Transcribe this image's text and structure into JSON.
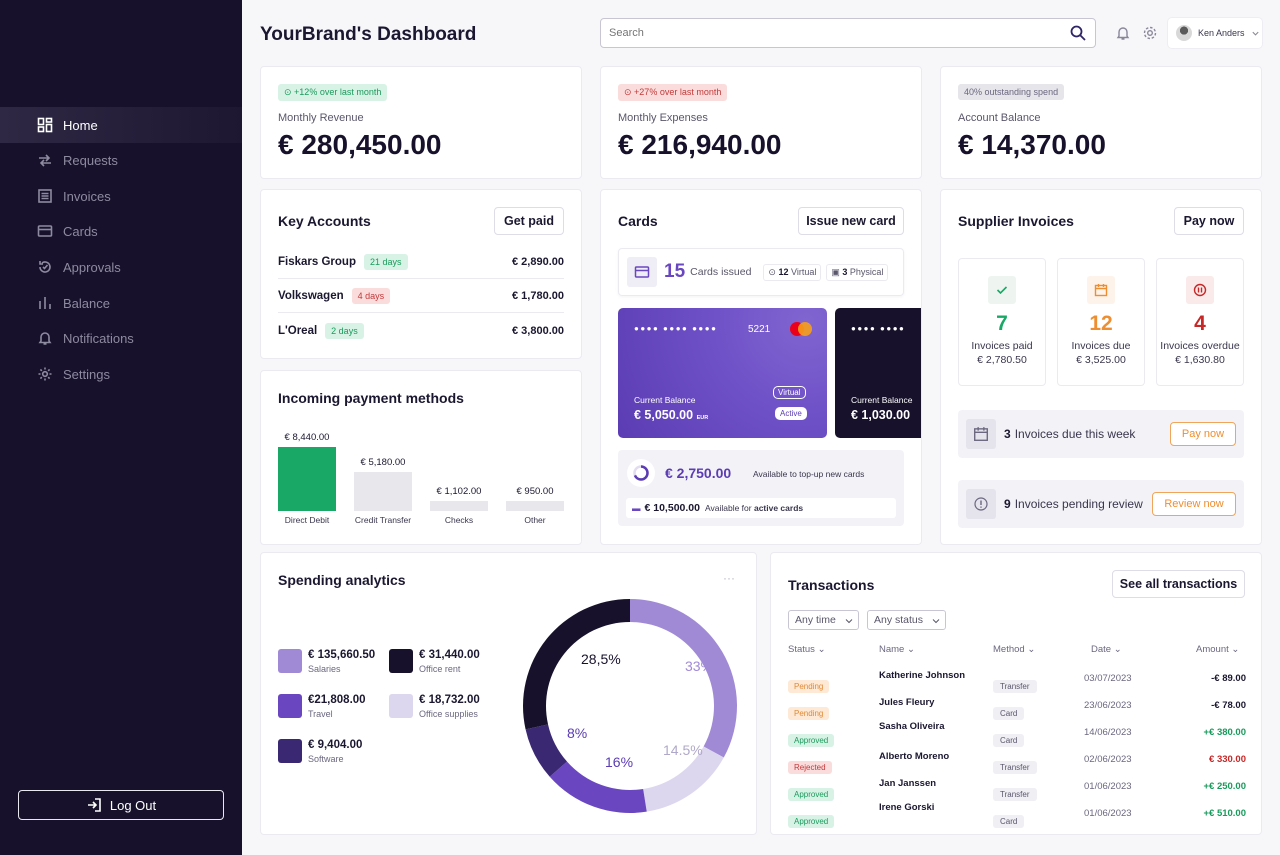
{
  "sidebar": {
    "items": [
      {
        "label": "Home",
        "icon": "grid-icon"
      },
      {
        "label": "Requests",
        "icon": "arrows-icon"
      },
      {
        "label": "Invoices",
        "icon": "invoice-icon"
      },
      {
        "label": "Cards",
        "icon": "card-icon"
      },
      {
        "label": "Approvals",
        "icon": "approval-icon"
      },
      {
        "label": "Balance",
        "icon": "chart-icon"
      },
      {
        "label": "Notifications",
        "icon": "bell-icon"
      },
      {
        "label": "Settings",
        "icon": "gear-icon"
      }
    ],
    "logout": "Log Out"
  },
  "header": {
    "title": "YourBrand's Dashboard",
    "search_placeholder": "Search",
    "user": "Ken Anders"
  },
  "kpis": [
    {
      "badge": "+12% over last month",
      "label": "Monthly Revenue",
      "value": "€ 280,450.00"
    },
    {
      "badge": "+27% over last month",
      "label": "Monthly Expenses",
      "value": "€ 216,940.00"
    },
    {
      "badge": "40% outstanding spend",
      "label": "Account Balance",
      "value": "€ 14,370.00"
    }
  ],
  "key_accounts": {
    "title": "Key Accounts",
    "button": "Get paid",
    "rows": [
      {
        "name": "Fiskars Group",
        "days": "21 days",
        "amount": "€ 2,890.00"
      },
      {
        "name": "Volkswagen",
        "days": "4 days",
        "amount": "€ 1,780.00"
      },
      {
        "name": "L'Oreal",
        "days": "2 days",
        "amount": "€ 3,800.00"
      }
    ]
  },
  "payment_methods": {
    "title": "Incoming payment methods"
  },
  "chart_data": {
    "type": "bar",
    "title": "Incoming payment methods",
    "categories": [
      "Direct Debit",
      "Credit Transfer",
      "Checks",
      "Other"
    ],
    "values": [
      8440,
      5180,
      1102,
      950
    ],
    "labels": [
      "€ 8,440.00",
      "€ 5,180.00",
      "€ 1,102.00",
      "€ 950.00"
    ],
    "colors": [
      "#1aa866",
      "#e8e8ec",
      "#e8e8ec",
      "#e8e8ec"
    ]
  },
  "cards": {
    "title": "Cards",
    "button": "Issue new card",
    "issued_count": "15",
    "issued_label": "Cards issued",
    "virtual_count": "12",
    "virtual_label": "Virtual",
    "physical_count": "3",
    "physical_label": "Physical",
    "card1": {
      "dots": "●●●● ●●●● ●●●●",
      "last4": "5221",
      "balance_label": "Current Balance",
      "balance": "€ 5,050.00",
      "currency": "EUR",
      "tag1": "Virtual",
      "tag2": "Active"
    },
    "card2": {
      "dots": "●●●● ●●●●",
      "balance_label": "Current Balance",
      "balance": "€ 1,030.00"
    },
    "topup_amount": "€ 2,750.00",
    "topup_label": "Available to top-up new cards",
    "active_amount": "€ 10,500.00",
    "active_label": "Available for",
    "active_label_bold": "active cards"
  },
  "supplier": {
    "title": "Supplier Invoices",
    "button": "Pay now",
    "boxes": [
      {
        "num": "7",
        "label": "Invoices paid",
        "amount": "€ 2,780.50",
        "color": "#1aa866"
      },
      {
        "num": "12",
        "label": "Invoices due",
        "amount": "€ 3,525.00",
        "color": "#ef8e30"
      },
      {
        "num": "4",
        "label": "Invoices overdue",
        "amount": "€ 1,630.80",
        "color": "#c62828"
      }
    ],
    "due_count": "3",
    "due_text": "Invoices due this week",
    "due_btn": "Pay now",
    "pending_count": "9",
    "pending_text": "Invoices pending review",
    "pending_btn": "Review now"
  },
  "spending": {
    "title": "Spending analytics",
    "more": "···",
    "legend": [
      {
        "value": "€ 135,660.50",
        "label": "Salaries",
        "color": "#a08ad6"
      },
      {
        "value": "€ 31,440.00",
        "label": "Office rent",
        "color": "#17112b"
      },
      {
        "value": "€21,808.00",
        "label": "Travel",
        "color": "#6a47c0"
      },
      {
        "value": "€ 18,732.00",
        "label": "Office supplies",
        "color": "#ddd6ef"
      },
      {
        "value": "€ 9,404.00",
        "label": "Software",
        "color": "#3a2873"
      }
    ],
    "donut": [
      {
        "pct": "33%",
        "value": 33,
        "color": "#a08ad6"
      },
      {
        "pct": "14.5%",
        "value": 14.5,
        "color": "#ddd6ef"
      },
      {
        "pct": "16%",
        "value": 16,
        "color": "#6a47c0"
      },
      {
        "pct": "8%",
        "value": 8,
        "color": "#3a2873"
      },
      {
        "pct": "28,5%",
        "value": 28.5,
        "color": "#17112b"
      }
    ]
  },
  "transactions": {
    "title": "Transactions",
    "button": "See all transactions",
    "filter1": "Any time",
    "filter2": "Any status",
    "headers": {
      "status": "Status",
      "name": "Name",
      "method": "Method",
      "date": "Date",
      "amount": "Amount"
    },
    "rows": [
      {
        "status": "Pending",
        "name": "Katherine Johnson",
        "method": "Transfer",
        "date": "03/07/2023",
        "amount": "-€ 89.00"
      },
      {
        "status": "Pending",
        "name": "Jules Fleury",
        "method": "Card",
        "date": "23/06/2023",
        "amount": "-€ 78.00"
      },
      {
        "status": "Approved",
        "name": "Sasha Oliveira",
        "method": "Card",
        "date": "14/06/2023",
        "amount": "+€ 380.00"
      },
      {
        "status": "Rejected",
        "name": "Alberto Moreno",
        "method": "Transfer",
        "date": "02/06/2023",
        "amount": "€ 330.00"
      },
      {
        "status": "Approved",
        "name": "Jan Janssen",
        "method": "Transfer",
        "date": "01/06/2023",
        "amount": "+€ 250.00"
      },
      {
        "status": "Approved",
        "name": "Irene Gorski",
        "method": "Card",
        "date": "01/06/2023",
        "amount": "+€ 510.00"
      }
    ]
  }
}
